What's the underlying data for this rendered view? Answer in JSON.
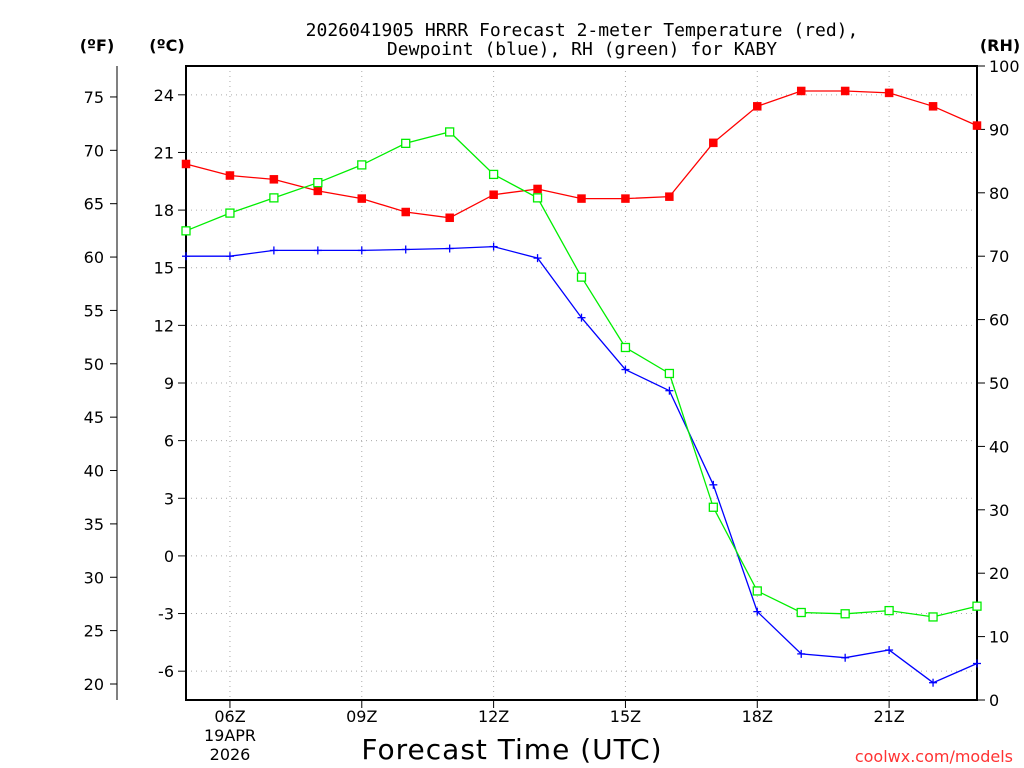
{
  "chart_data": {
    "type": "line",
    "title_line1": "2026041905 HRRR Forecast 2-meter Temperature (red),",
    "title_line2": "Dewpoint (blue), RH (green) for KABY",
    "xlabel": "Forecast Time (UTC)",
    "left_outer_unit": "(ºF)",
    "left_inner_unit": "(ºC)",
    "right_unit": "(RH)",
    "credit": "coolwx.com/models",
    "x_start_label": [
      "06Z",
      "19APR",
      "2026"
    ],
    "x_ticks": [
      {
        "hour": 6,
        "label": "06Z"
      },
      {
        "hour": 9,
        "label": "09Z"
      },
      {
        "hour": 12,
        "label": "12Z"
      },
      {
        "hour": 15,
        "label": "15Z"
      },
      {
        "hour": 18,
        "label": "18Z"
      },
      {
        "hour": 21,
        "label": "21Z"
      }
    ],
    "x_range_hours": [
      5,
      23
    ],
    "celsius_range": [
      -7.5,
      25.5
    ],
    "celsius_ticks": [
      24,
      21,
      18,
      15,
      12,
      9,
      6,
      3,
      0,
      -3,
      -6
    ],
    "fahrenheit_ticks": [
      75,
      70,
      65,
      60,
      55,
      50,
      45,
      40,
      35,
      30,
      25,
      20
    ],
    "rh_range": [
      0,
      100
    ],
    "rh_ticks": [
      100,
      90,
      80,
      70,
      60,
      50,
      40,
      30,
      20,
      10,
      0
    ],
    "hours": [
      5,
      6,
      7,
      8,
      9,
      10,
      11,
      12,
      13,
      14,
      15,
      16,
      17,
      18,
      19,
      20,
      21,
      22,
      23
    ],
    "series": [
      {
        "name": "Temperature",
        "axis": "celsius",
        "color": "#ff0000",
        "marker": "filled-square",
        "values": [
          20.4,
          19.8,
          19.6,
          19.0,
          18.6,
          17.9,
          17.6,
          18.8,
          19.1,
          18.6,
          18.6,
          18.7,
          21.5,
          23.4,
          24.2,
          24.2,
          24.1,
          23.4,
          22.4
        ]
      },
      {
        "name": "Dewpoint",
        "axis": "celsius",
        "color": "#0000ff",
        "marker": "plus",
        "values": [
          15.6,
          15.6,
          15.9,
          15.9,
          15.9,
          15.95,
          16.0,
          16.1,
          15.5,
          12.4,
          9.7,
          8.6,
          3.7,
          -2.9,
          -5.1,
          -5.3,
          -4.9,
          -6.6,
          -5.6
        ]
      },
      {
        "name": "RH",
        "axis": "rh",
        "color": "#00ee00",
        "marker": "open-square",
        "values": [
          74,
          76.8,
          79.2,
          81.6,
          84.4,
          87.8,
          89.6,
          82.9,
          79.2,
          66.7,
          55.6,
          51.5,
          30.4,
          17.2,
          13.8,
          13.6,
          14.1,
          13.1,
          14.8
        ]
      }
    ]
  }
}
